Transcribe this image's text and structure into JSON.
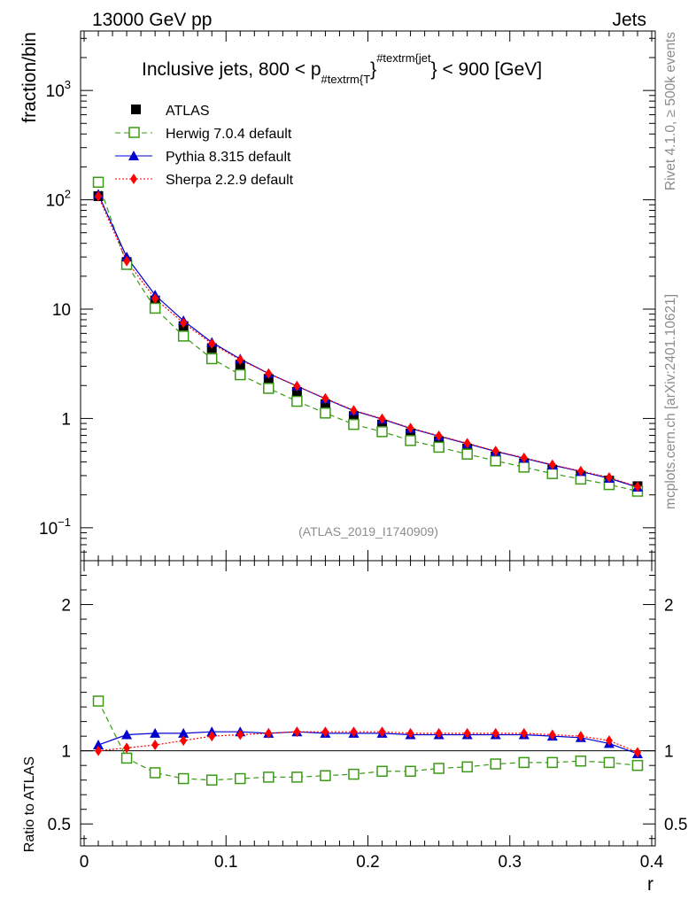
{
  "header": {
    "left": "13000 GeV pp",
    "right": "Jets"
  },
  "side_labels": {
    "rivet": "Rivet 4.1.0, ≥ 500k events",
    "mcplots": "mcplots.cern.ch [arXiv:2401.10621]"
  },
  "chart_data": {
    "type": "line",
    "title_parts": {
      "pre": "Inclusive jets, 800 < p",
      "sub": "#textrm{T",
      "brace": "}",
      "sup": "#textrm{jet",
      "post": "} < 900 [GeV]"
    },
    "analysis_id": "(ATLAS_2019_I1740909)",
    "xlabel": "r",
    "ylabel_main": "fraction/bin",
    "ylabel_ratio": "Ratio to ATLAS",
    "xlim": [
      -0.0025,
      0.4025
    ],
    "ylim_main": [
      0.05,
      3500
    ],
    "ylim_ratio": [
      0.35,
      2.3
    ],
    "x_ticks": [
      "0",
      "0.1",
      "0.2",
      "0.3",
      "0.4"
    ],
    "y_ticks_main": [
      {
        "base": "10",
        "exp": "−1",
        "value": 0.1
      },
      {
        "base": "1",
        "exp": "",
        "value": 1
      },
      {
        "base": "10",
        "exp": "",
        "value": 10
      },
      {
        "base": "10",
        "exp": "2",
        "value": 100
      },
      {
        "base": "10",
        "exp": "3",
        "value": 1000
      }
    ],
    "y_ticks_ratio": [
      {
        "label": "0.5",
        "value": 0.5
      },
      {
        "label": "1",
        "value": 1
      },
      {
        "label": "2",
        "value": 2
      }
    ],
    "x": [
      0.01,
      0.03,
      0.05,
      0.07,
      0.09,
      0.11,
      0.13,
      0.15,
      0.17,
      0.19,
      0.21,
      0.23,
      0.25,
      0.27,
      0.29,
      0.31,
      0.33,
      0.35,
      0.37,
      0.39
    ],
    "series": [
      {
        "name": "ATLAS",
        "color": "#000000",
        "marker": "square-filled",
        "values": [
          108,
          27,
          12,
          7,
          4.4,
          3.1,
          2.3,
          1.75,
          1.35,
          1.05,
          0.88,
          0.73,
          0.62,
          0.53,
          0.45,
          0.39,
          0.34,
          0.3,
          0.27,
          0.24
        ]
      },
      {
        "name": "Herwig 7.0.4 default",
        "color": "#3a9a16",
        "marker": "square-open",
        "dash": "6,4",
        "ratio": [
          1.34,
          0.95,
          0.85,
          0.81,
          0.8,
          0.81,
          0.82,
          0.82,
          0.83,
          0.84,
          0.86,
          0.86,
          0.88,
          0.89,
          0.91,
          0.92,
          0.92,
          0.93,
          0.92,
          0.9
        ]
      },
      {
        "name": "Pythia 8.315 default",
        "color": "#0000d0",
        "marker": "triangle",
        "ratio": [
          1.04,
          1.11,
          1.12,
          1.12,
          1.13,
          1.13,
          1.12,
          1.13,
          1.12,
          1.12,
          1.12,
          1.11,
          1.11,
          1.11,
          1.11,
          1.11,
          1.1,
          1.09,
          1.05,
          0.98
        ]
      },
      {
        "name": "Sherpa 2.2.9 default",
        "color": "#ff0000",
        "marker": "diamond",
        "dash": "2,2",
        "ratio": [
          1.0,
          1.02,
          1.04,
          1.07,
          1.1,
          1.11,
          1.12,
          1.13,
          1.13,
          1.13,
          1.13,
          1.12,
          1.12,
          1.12,
          1.12,
          1.12,
          1.11,
          1.1,
          1.07,
          0.99
        ]
      }
    ]
  }
}
